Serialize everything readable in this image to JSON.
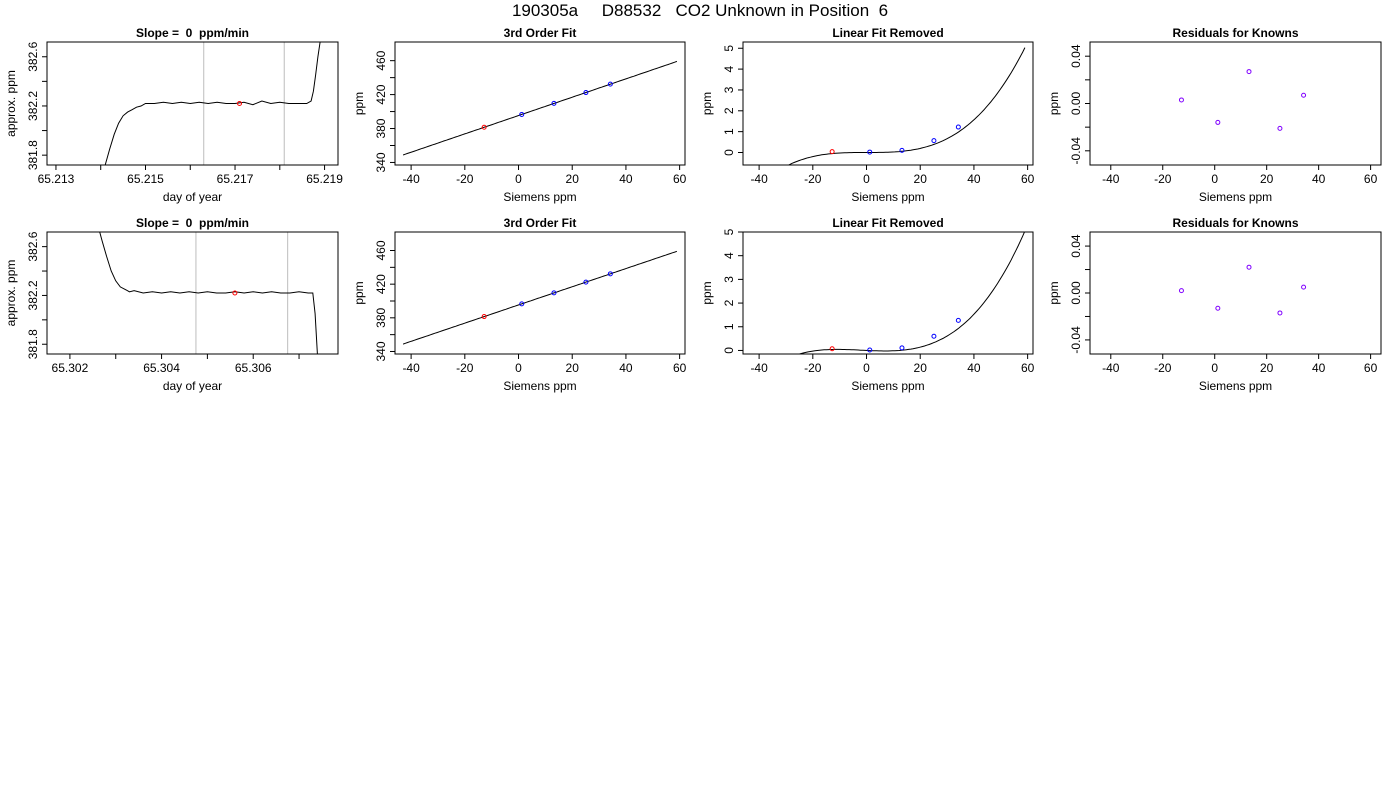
{
  "page": {
    "title": "190305a     D88532   CO2 Unknown in Position  6"
  },
  "colors": {
    "axis": "#000000",
    "curve": "#000000",
    "marker_line": "#c8c8c8",
    "unknown_point": "#ff0000",
    "known_point": "#0000ff",
    "residual_point": "#8000ff"
  },
  "chart_data": [
    {
      "id": "r1-trace",
      "type": "line",
      "title": "Slope =  0  ppm/min",
      "xlabel": "day of year",
      "ylabel": "approx. ppm",
      "xlim": [
        65.2128,
        65.2193
      ],
      "ylim": [
        381.72,
        382.72
      ],
      "xticks": [
        65.213,
        65.214,
        65.215,
        65.216,
        65.217,
        65.218,
        65.219
      ],
      "xtick_labels": [
        "65.213",
        "",
        "65.215",
        "",
        "65.217",
        "",
        "65.219"
      ],
      "yticks": [
        381.8,
        382.0,
        382.2,
        382.4,
        382.6
      ],
      "ytick_labels": [
        "381.8",
        "",
        "382.2",
        "",
        "382.6"
      ],
      "vlines": [
        65.2163,
        65.2181
      ],
      "series": [
        {
          "x": [
            65.2141,
            65.2142,
            65.2143,
            65.2144,
            65.2145,
            65.2146,
            65.2147,
            65.2148,
            65.2149,
            65.215,
            65.2152,
            65.2154,
            65.2156,
            65.2158,
            65.216,
            65.2162,
            65.2164,
            65.2166,
            65.2168,
            65.217,
            65.2172,
            65.2174,
            65.2176,
            65.2178,
            65.218,
            65.2182,
            65.2184,
            65.2186,
            65.2187,
            65.21875,
            65.2188,
            65.21885,
            65.2189
          ],
          "y": [
            381.72,
            381.85,
            381.97,
            382.06,
            382.12,
            382.15,
            382.17,
            382.19,
            382.2,
            382.22,
            382.22,
            382.23,
            382.22,
            382.23,
            382.22,
            382.23,
            382.22,
            382.23,
            382.22,
            382.22,
            382.23,
            382.21,
            382.24,
            382.22,
            382.23,
            382.22,
            382.22,
            382.22,
            382.24,
            382.32,
            382.45,
            382.6,
            382.72
          ]
        }
      ],
      "points": [
        {
          "x": 65.2171,
          "y": 382.22,
          "kind": "unknown"
        }
      ]
    },
    {
      "id": "r1-fit",
      "type": "line",
      "title": "3rd Order Fit",
      "xlabel": "Siemens ppm",
      "ylabel": "ppm",
      "xlim": [
        -46,
        62
      ],
      "ylim": [
        337,
        482
      ],
      "xticks": [
        -40,
        -20,
        0,
        20,
        40,
        60
      ],
      "xtick_labels": [
        "-40",
        "-20",
        "0",
        "20",
        "40",
        "60"
      ],
      "yticks": [
        340,
        360,
        380,
        400,
        420,
        440,
        460
      ],
      "ytick_labels": [
        "340",
        "",
        "380",
        "",
        "420",
        "",
        "460"
      ],
      "curve": {
        "poly": [
          395.3,
          1.081
        ],
        "x_range": [
          -43,
          59
        ]
      },
      "points": [
        {
          "x": -12.8,
          "y": 381.5,
          "kind": "unknown"
        },
        {
          "x": 1.2,
          "y": 396.6,
          "kind": "known"
        },
        {
          "x": 13.2,
          "y": 409.6,
          "kind": "known"
        },
        {
          "x": 25.1,
          "y": 422.4,
          "kind": "known"
        },
        {
          "x": 34.2,
          "y": 432.3,
          "kind": "known"
        }
      ]
    },
    {
      "id": "r1-linres",
      "type": "line",
      "title": "Linear Fit Removed",
      "xlabel": "Siemens ppm",
      "ylabel": "ppm",
      "xlim": [
        -46,
        62
      ],
      "ylim": [
        -0.6,
        5.3
      ],
      "xticks": [
        -40,
        -20,
        0,
        20,
        40,
        60
      ],
      "xtick_labels": [
        "-40",
        "-20",
        "0",
        "20",
        "40",
        "60"
      ],
      "yticks": [
        0,
        1,
        2,
        3,
        4,
        5
      ],
      "ytick_labels": [
        "0",
        "1",
        "2",
        "3",
        "4",
        "5"
      ],
      "curve": {
        "poly": [
          0.0,
          0.0,
          0.0,
          2.45e-05
        ],
        "x_range": [
          -43,
          59
        ]
      },
      "points": [
        {
          "x": -12.8,
          "y": 0.04,
          "kind": "unknown"
        },
        {
          "x": 1.2,
          "y": 0.02,
          "kind": "known"
        },
        {
          "x": 13.2,
          "y": 0.1,
          "kind": "known"
        },
        {
          "x": 25.1,
          "y": 0.57,
          "kind": "known"
        },
        {
          "x": 34.2,
          "y": 1.22,
          "kind": "known"
        }
      ]
    },
    {
      "id": "r1-resid",
      "type": "scatter",
      "title": "Residuals for Knowns",
      "xlabel": "Siemens ppm",
      "ylabel": "ppm",
      "xlim": [
        -48,
        64
      ],
      "ylim": [
        -0.052,
        0.052
      ],
      "xticks": [
        -40,
        -20,
        0,
        20,
        40,
        60
      ],
      "xtick_labels": [
        "-40",
        "-20",
        "0",
        "20",
        "40",
        "60"
      ],
      "yticks": [
        -0.04,
        -0.02,
        0.0,
        0.02,
        0.04
      ],
      "ytick_labels": [
        "-0.04",
        "",
        "0.00",
        "",
        "0.04"
      ],
      "points": [
        {
          "x": -12.8,
          "y": 0.003,
          "kind": "residual"
        },
        {
          "x": 1.2,
          "y": -0.016,
          "kind": "residual"
        },
        {
          "x": 13.2,
          "y": 0.027,
          "kind": "residual"
        },
        {
          "x": 25.1,
          "y": -0.021,
          "kind": "residual"
        },
        {
          "x": 34.2,
          "y": 0.007,
          "kind": "residual"
        }
      ]
    },
    {
      "id": "r2-trace",
      "type": "line",
      "title": "Slope =  0  ppm/min",
      "xlabel": "day of year",
      "ylabel": "approx. ppm",
      "xlim": [
        65.3015,
        65.30785
      ],
      "ylim": [
        381.72,
        382.72
      ],
      "xticks": [
        65.302,
        65.303,
        65.304,
        65.305,
        65.306,
        65.307
      ],
      "xtick_labels": [
        "65.302",
        "",
        "65.304",
        "",
        "65.306",
        ""
      ],
      "yticks": [
        381.8,
        382.0,
        382.2,
        382.4,
        382.6
      ],
      "ytick_labels": [
        "381.8",
        "",
        "382.2",
        "",
        "382.6"
      ],
      "vlines": [
        65.30475,
        65.30675
      ],
      "series": [
        {
          "x": [
            65.30265,
            65.3027,
            65.3028,
            65.3029,
            65.303,
            65.3031,
            65.3032,
            65.3033,
            65.3034,
            65.3036,
            65.3038,
            65.304,
            65.3042,
            65.3044,
            65.3046,
            65.3048,
            65.305,
            65.3052,
            65.3054,
            65.3056,
            65.3058,
            65.306,
            65.3062,
            65.3064,
            65.3066,
            65.3068,
            65.307,
            65.3072,
            65.3073,
            65.30735,
            65.3074
          ],
          "y": [
            382.72,
            382.65,
            382.52,
            382.4,
            382.32,
            382.27,
            382.25,
            382.23,
            382.24,
            382.22,
            382.23,
            382.22,
            382.23,
            382.22,
            382.23,
            382.22,
            382.23,
            382.22,
            382.22,
            382.23,
            382.22,
            382.23,
            382.22,
            382.23,
            382.22,
            382.22,
            382.23,
            382.22,
            382.22,
            382.05,
            381.72
          ]
        }
      ],
      "points": [
        {
          "x": 65.3056,
          "y": 382.22,
          "kind": "unknown"
        }
      ]
    },
    {
      "id": "r2-fit",
      "type": "line",
      "title": "3rd Order Fit",
      "xlabel": "Siemens ppm",
      "ylabel": "ppm",
      "xlim": [
        -46,
        62
      ],
      "ylim": [
        337,
        482
      ],
      "xticks": [
        -40,
        -20,
        0,
        20,
        40,
        60
      ],
      "xtick_labels": [
        "-40",
        "-20",
        "0",
        "20",
        "40",
        "60"
      ],
      "yticks": [
        340,
        360,
        380,
        400,
        420,
        440,
        460
      ],
      "ytick_labels": [
        "340",
        "",
        "380",
        "",
        "420",
        "",
        "460"
      ],
      "curve": {
        "poly": [
          395.3,
          1.081
        ],
        "x_range": [
          -43,
          59
        ]
      },
      "points": [
        {
          "x": -12.8,
          "y": 381.5,
          "kind": "unknown"
        },
        {
          "x": 1.2,
          "y": 396.6,
          "kind": "known"
        },
        {
          "x": 13.2,
          "y": 409.6,
          "kind": "known"
        },
        {
          "x": 25.1,
          "y": 422.4,
          "kind": "known"
        },
        {
          "x": 34.2,
          "y": 432.3,
          "kind": "known"
        }
      ]
    },
    {
      "id": "r2-linres",
      "type": "line",
      "title": "Linear Fit Removed",
      "xlabel": "Siemens ppm",
      "ylabel": "ppm",
      "xlim": [
        -46,
        62
      ],
      "ylim": [
        -0.15,
        5.0
      ],
      "xticks": [
        -40,
        -20,
        0,
        20,
        40,
        60
      ],
      "xtick_labels": [
        "-40",
        "-20",
        "0",
        "20",
        "40",
        "60"
      ],
      "yticks": [
        0,
        1,
        2,
        3,
        4,
        5
      ],
      "ytick_labels": [
        "0",
        "1",
        "2",
        "3",
        "4",
        "5"
      ],
      "curve": {
        "poly": [
          0.0,
          -0.0053,
          0.00014,
          2.37e-05
        ],
        "x_range": [
          -43,
          59
        ]
      },
      "points": [
        {
          "x": -12.8,
          "y": 0.07,
          "kind": "unknown"
        },
        {
          "x": 1.2,
          "y": 0.02,
          "kind": "known"
        },
        {
          "x": 13.2,
          "y": 0.11,
          "kind": "known"
        },
        {
          "x": 25.1,
          "y": 0.6,
          "kind": "known"
        },
        {
          "x": 34.2,
          "y": 1.27,
          "kind": "known"
        }
      ]
    },
    {
      "id": "r2-resid",
      "type": "scatter",
      "title": "Residuals for Knowns",
      "xlabel": "Siemens ppm",
      "ylabel": "ppm",
      "xlim": [
        -48,
        64
      ],
      "ylim": [
        -0.052,
        0.052
      ],
      "xticks": [
        -40,
        -20,
        0,
        20,
        40,
        60
      ],
      "xtick_labels": [
        "-40",
        "-20",
        "0",
        "20",
        "40",
        "60"
      ],
      "yticks": [
        -0.04,
        -0.02,
        0.0,
        0.02,
        0.04
      ],
      "ytick_labels": [
        "-0.04",
        "",
        "0.00",
        "",
        "0.04"
      ],
      "points": [
        {
          "x": -12.8,
          "y": 0.002,
          "kind": "residual"
        },
        {
          "x": 1.2,
          "y": -0.013,
          "kind": "residual"
        },
        {
          "x": 13.2,
          "y": 0.022,
          "kind": "residual"
        },
        {
          "x": 25.1,
          "y": -0.017,
          "kind": "residual"
        },
        {
          "x": 34.2,
          "y": 0.005,
          "kind": "residual"
        }
      ]
    }
  ]
}
